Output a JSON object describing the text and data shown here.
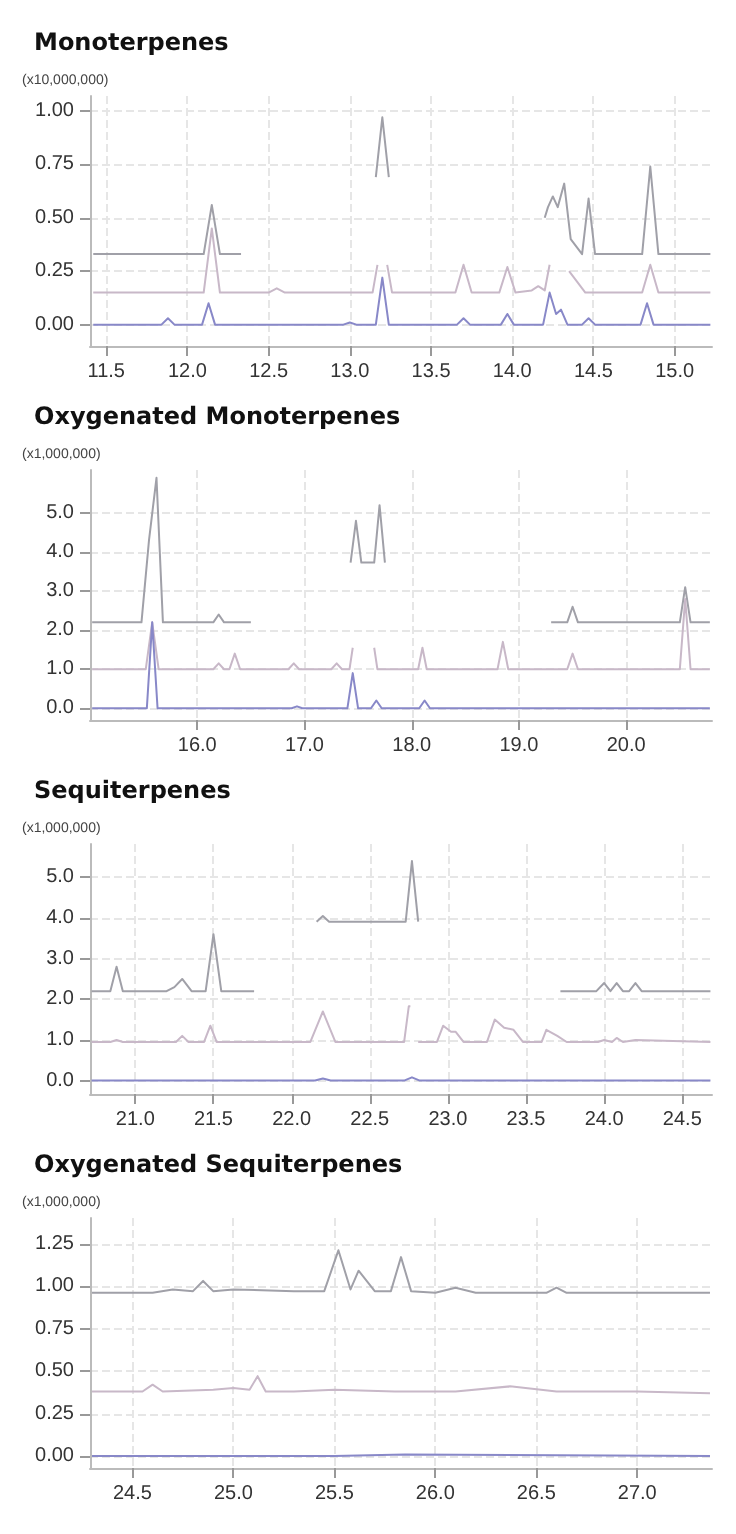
{
  "chart_data": [
    {
      "type": "line",
      "title": "Monoterpenes",
      "ylabel": "(x10,000,000)",
      "xlim": [
        11.4,
        15.23
      ],
      "ylim": [
        -0.1,
        1.07
      ],
      "grid": true,
      "marker": "none",
      "line_style": "solid",
      "xticks": [
        {
          "value": 11.5,
          "label": "11.5"
        },
        {
          "value": 12,
          "label": "12.0"
        },
        {
          "value": 12.5,
          "label": "12.5"
        },
        {
          "value": 13,
          "label": "13.0"
        },
        {
          "value": 13.5,
          "label": "13.5"
        },
        {
          "value": 14,
          "label": "14.0"
        },
        {
          "value": 14.5,
          "label": "14.5"
        },
        {
          "value": 15,
          "label": "15.0"
        }
      ],
      "yticks": [
        {
          "value": 0,
          "label": "0.00"
        },
        {
          "value": 0.25,
          "label": "0.25"
        },
        {
          "value": 0.5,
          "label": "0.50"
        },
        {
          "value": 0.75,
          "label": "0.75"
        },
        {
          "value": 1,
          "label": "1.00"
        }
      ],
      "series": [
        {
          "color": "#a0a0a8",
          "x": [
            11.42,
            12.1,
            12.15,
            12.2,
            12.33,
            12.36,
            13.16,
            13.2,
            13.24,
            13.27,
            14.2,
            14.22,
            14.25,
            14.28,
            14.32,
            14.36,
            14.43,
            14.47,
            14.51,
            14.8,
            14.85,
            14.9,
            15.22
          ],
          "values": [
            0.33,
            0.33,
            0.56,
            0.33,
            0.33,
            null,
            0.69,
            0.97,
            0.69,
            null,
            0.5,
            0.55,
            0.6,
            0.55,
            0.66,
            0.4,
            0.33,
            0.59,
            0.33,
            0.33,
            0.74,
            0.33,
            0.33
          ]
        },
        {
          "color": "#c8b8c8",
          "x": [
            11.42,
            12.1,
            12.15,
            12.2,
            12.5,
            12.55,
            12.6,
            13.14,
            13.17,
            13.2,
            13.23,
            13.26,
            13.65,
            13.7,
            13.75,
            13.92,
            13.97,
            14.02,
            14.12,
            14.16,
            14.2,
            14.23,
            14.27,
            14.35,
            14.4,
            14.45,
            14.8,
            14.85,
            14.9,
            15.22
          ],
          "values": [
            0.15,
            0.15,
            0.45,
            0.15,
            0.15,
            0.17,
            0.15,
            0.15,
            0.28,
            null,
            0.28,
            0.15,
            0.15,
            0.28,
            0.15,
            0.15,
            0.27,
            0.15,
            0.16,
            0.18,
            0.16,
            0.28,
            null,
            0.25,
            0.2,
            0.15,
            0.15,
            0.28,
            0.15,
            0.15
          ]
        },
        {
          "color": "#8888c8",
          "x": [
            11.42,
            11.84,
            11.88,
            11.92,
            12.09,
            12.13,
            12.17,
            12.96,
            13.0,
            13.04,
            13.16,
            13.2,
            13.24,
            13.66,
            13.7,
            13.74,
            13.93,
            13.97,
            14.01,
            14.19,
            14.23,
            14.27,
            14.3,
            14.34,
            14.43,
            14.47,
            14.51,
            14.79,
            14.83,
            14.87,
            15.22
          ],
          "values": [
            0,
            0,
            0.03,
            0,
            0,
            0.1,
            0,
            0,
            0.01,
            0,
            0,
            0.22,
            0,
            0,
            0.03,
            0,
            0,
            0.05,
            0,
            0,
            0.15,
            0.05,
            0.07,
            0,
            0,
            0.03,
            0,
            0,
            0.1,
            0,
            0
          ]
        }
      ]
    },
    {
      "type": "line",
      "title": "Oxygenated Monoterpenes",
      "ylabel": "(x1,000,000)",
      "xlim": [
        15,
        20.8
      ],
      "ylim": [
        -0.3,
        6.1
      ],
      "grid": true,
      "marker": "none",
      "line_style": "solid",
      "xticks": [
        {
          "value": 16,
          "label": "16.0"
        },
        {
          "value": 17,
          "label": "17.0"
        },
        {
          "value": 18,
          "label": "18.0"
        },
        {
          "value": 19,
          "label": "19.0"
        },
        {
          "value": 20,
          "label": "20.0"
        }
      ],
      "yticks": [
        {
          "value": 0,
          "label": "0.0"
        },
        {
          "value": 1,
          "label": "1.0"
        },
        {
          "value": 2,
          "label": "2.0"
        },
        {
          "value": 3,
          "label": "3.0"
        },
        {
          "value": 4,
          "label": "4.0"
        },
        {
          "value": 5,
          "label": "5.0"
        }
      ],
      "series": [
        {
          "color": "#a0a0a8",
          "x": [
            15.02,
            15.48,
            15.55,
            15.62,
            15.68,
            16.15,
            16.2,
            16.25,
            16.5,
            16.52,
            17.43,
            17.48,
            17.53,
            17.65,
            17.7,
            17.75,
            17.77,
            19.3,
            19.45,
            19.5,
            19.55,
            20.5,
            20.55,
            20.6,
            20.78
          ],
          "values": [
            2.2,
            2.2,
            4.3,
            5.9,
            2.2,
            2.2,
            2.4,
            2.2,
            2.2,
            null,
            3.73,
            4.8,
            3.73,
            3.73,
            5.2,
            3.73,
            null,
            2.2,
            2.2,
            2.6,
            2.2,
            2.2,
            3.1,
            2.2,
            2.2
          ]
        },
        {
          "color": "#c8b8c8",
          "x": [
            15.02,
            15.52,
            15.58,
            15.64,
            16.15,
            16.2,
            16.25,
            16.3,
            16.35,
            16.4,
            16.85,
            16.9,
            16.95,
            17.25,
            17.3,
            17.35,
            17.42,
            17.45,
            17.48,
            17.62,
            17.65,
            17.68,
            18.06,
            18.1,
            18.14,
            18.8,
            18.85,
            18.9,
            19.45,
            19.5,
            19.55,
            20.5,
            20.55,
            20.6,
            20.78
          ],
          "values": [
            1,
            1,
            2.2,
            1,
            1,
            1.15,
            1,
            1,
            1.4,
            1,
            1,
            1.15,
            1,
            1,
            1.15,
            1,
            1,
            1.55,
            null,
            null,
            1.55,
            1,
            1,
            1.55,
            1,
            1,
            1.7,
            1,
            1,
            1.4,
            1,
            1,
            2.8,
            1,
            1
          ]
        },
        {
          "color": "#8888c8",
          "x": [
            15.02,
            15.53,
            15.58,
            15.63,
            16.88,
            16.93,
            16.98,
            17.4,
            17.45,
            17.5,
            17.62,
            17.67,
            17.72,
            18.07,
            18.12,
            18.17,
            20.78
          ],
          "values": [
            0,
            0,
            2.2,
            0,
            0,
            0.05,
            0,
            0,
            0.9,
            0,
            0,
            0.2,
            0,
            0,
            0.2,
            0,
            0
          ]
        }
      ]
    },
    {
      "type": "line",
      "title": "Sequiterpenes",
      "ylabel": "(x1,000,000)",
      "xlim": [
        20.71,
        24.69
      ],
      "ylim": [
        -0.33,
        5.82
      ],
      "grid": true,
      "marker": "none",
      "line_style": "solid",
      "xticks": [
        {
          "value": 21,
          "label": "21.0"
        },
        {
          "value": 21.5,
          "label": "21.5"
        },
        {
          "value": 22,
          "label": "22.0"
        },
        {
          "value": 22.5,
          "label": "22.5"
        },
        {
          "value": 23,
          "label": "23.0"
        },
        {
          "value": 23.5,
          "label": "23.5"
        },
        {
          "value": 24,
          "label": "24.0"
        },
        {
          "value": 24.5,
          "label": "24.5"
        }
      ],
      "yticks": [
        {
          "value": 0,
          "label": "0.0"
        },
        {
          "value": 1,
          "label": "1.0"
        },
        {
          "value": 2,
          "label": "2.0"
        },
        {
          "value": 3,
          "label": "3.0"
        },
        {
          "value": 4,
          "label": "4.0"
        },
        {
          "value": 5,
          "label": "5.0"
        }
      ],
      "series": [
        {
          "color": "#a0a0a8",
          "x": [
            20.72,
            20.84,
            20.88,
            20.92,
            21.2,
            21.25,
            21.3,
            21.36,
            21.45,
            21.5,
            21.55,
            21.76,
            21.78,
            22.16,
            22.2,
            22.24,
            22.73,
            22.77,
            22.81,
            23.68,
            23.72,
            23.95,
            24.0,
            24.04,
            24.08,
            24.12,
            24.16,
            24.2,
            24.24,
            24.68
          ],
          "values": [
            2.2,
            2.2,
            2.8,
            2.2,
            2.2,
            2.3,
            2.5,
            2.2,
            2.2,
            3.6,
            2.2,
            2.2,
            null,
            3.91,
            4.05,
            3.91,
            3.91,
            5.4,
            3.91,
            null,
            2.2,
            2.2,
            2.4,
            2.2,
            2.4,
            2.2,
            2.2,
            2.4,
            2.2,
            2.2
          ]
        },
        {
          "color": "#c8b8c8",
          "x": [
            20.72,
            20.84,
            20.88,
            20.92,
            21.26,
            21.3,
            21.34,
            21.44,
            21.48,
            21.52,
            22.12,
            22.2,
            22.28,
            22.72,
            22.75,
            22.76,
            22.78,
            22.81,
            22.93,
            22.97,
            23.02,
            23.05,
            23.1,
            23.25,
            23.3,
            23.36,
            23.42,
            23.48,
            23.6,
            23.63,
            23.7,
            23.76,
            23.96,
            24.0,
            24.05,
            24.08,
            24.12,
            24.2,
            24.68
          ],
          "values": [
            0.95,
            0.95,
            1,
            0.95,
            0.95,
            1.1,
            0.95,
            0.95,
            1.35,
            0.95,
            0.95,
            1.7,
            0.95,
            0.95,
            1.83,
            1.83,
            null,
            0.95,
            0.95,
            1.35,
            1.2,
            1.2,
            0.95,
            0.95,
            1.5,
            1.3,
            1.25,
            0.95,
            0.95,
            1.25,
            1.1,
            0.95,
            0.95,
            1,
            0.95,
            1.05,
            0.95,
            1,
            0.95
          ]
        },
        {
          "color": "#8888c8",
          "x": [
            20.72,
            22.15,
            22.2,
            22.25,
            22.72,
            22.77,
            22.82,
            24.68
          ],
          "values": [
            0,
            0,
            0.05,
            0,
            0,
            0.08,
            0,
            0
          ]
        }
      ]
    },
    {
      "type": "line",
      "title": "Oxygenated Sequiterpenes",
      "ylabel": "(x1,000,000)",
      "xlim": [
        24.29,
        27.37
      ],
      "ylim": [
        -0.07,
        1.4
      ],
      "grid": true,
      "marker": "none",
      "line_style": "solid",
      "xticks": [
        {
          "value": 24.5,
          "label": "24.5"
        },
        {
          "value": 25,
          "label": "25.0"
        },
        {
          "value": 25.5,
          "label": "25.5"
        },
        {
          "value": 26,
          "label": "26.0"
        },
        {
          "value": 26.5,
          "label": "26.5"
        },
        {
          "value": 27,
          "label": "27.0"
        }
      ],
      "yticks": [
        {
          "value": 0,
          "label": "0.00"
        },
        {
          "value": 0.25,
          "label": "0.25"
        },
        {
          "value": 0.5,
          "label": "0.50"
        },
        {
          "value": 0.75,
          "label": "0.75"
        },
        {
          "value": 1,
          "label": "1.00"
        },
        {
          "value": 1.25,
          "label": "1.25"
        }
      ],
      "series": [
        {
          "color": "#a0a0a8",
          "x": [
            24.3,
            24.6,
            24.7,
            24.8,
            24.85,
            24.9,
            25.0,
            25.3,
            25.45,
            25.52,
            25.58,
            25.62,
            25.7,
            25.78,
            25.83,
            25.88,
            26.0,
            26.1,
            26.2,
            26.55,
            26.6,
            26.65,
            27.36
          ],
          "values": [
            0.96,
            0.96,
            0.98,
            0.97,
            1.03,
            0.97,
            0.98,
            0.97,
            0.97,
            1.21,
            0.98,
            1.09,
            0.97,
            0.97,
            1.17,
            0.97,
            0.96,
            0.99,
            0.96,
            0.96,
            0.99,
            0.96,
            0.96
          ]
        },
        {
          "color": "#c8b8c8",
          "x": [
            24.3,
            24.55,
            24.6,
            24.65,
            24.9,
            25.0,
            25.08,
            25.12,
            25.16,
            25.3,
            25.5,
            25.8,
            26.1,
            26.37,
            26.6,
            27.0,
            27.36
          ],
          "values": [
            0.38,
            0.38,
            0.42,
            0.38,
            0.39,
            0.4,
            0.39,
            0.47,
            0.38,
            0.38,
            0.39,
            0.38,
            0.38,
            0.41,
            0.38,
            0.38,
            0.37
          ]
        },
        {
          "color": "#8888c8",
          "x": [
            24.3,
            25.5,
            25.85,
            27.36
          ],
          "values": [
            0,
            0,
            0.01,
            0
          ]
        }
      ]
    }
  ]
}
